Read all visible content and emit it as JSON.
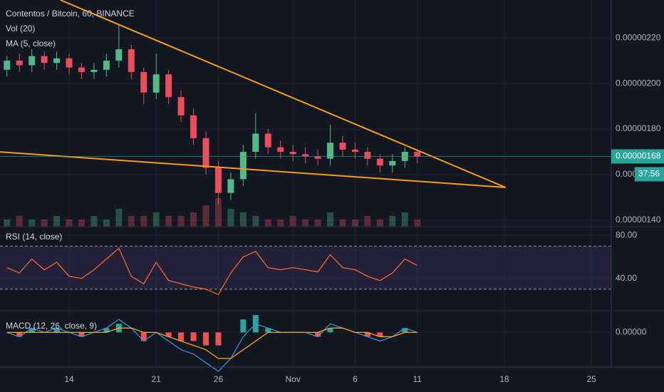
{
  "chart_data": [
    {
      "type": "candlestick",
      "title": "Contentos / Bitcoin, 60, BINANCE",
      "indicators": [
        "Vol (20)",
        "MA (5, close)"
      ],
      "x": [
        9,
        10,
        11,
        12,
        13,
        14,
        15,
        16,
        17,
        18,
        19,
        20,
        21,
        22,
        23,
        24,
        25,
        26,
        27,
        28,
        29,
        30,
        31,
        32,
        33,
        34,
        35,
        36,
        37,
        38,
        39,
        40,
        41,
        42
      ],
      "open": [
        2.06e-06,
        2.1e-06,
        2.08e-06,
        2.12e-06,
        2.09e-06,
        2.11e-06,
        2.07e-06,
        2.05e-06,
        2.06e-06,
        2.1e-06,
        2.15e-06,
        2.05e-06,
        1.96e-06,
        2.04e-06,
        1.94e-06,
        1.86e-06,
        1.76e-06,
        1.63e-06,
        1.52e-06,
        1.58e-06,
        1.7e-06,
        1.78e-06,
        1.72e-06,
        1.7e-06,
        1.69e-06,
        1.68e-06,
        1.67e-06,
        1.74e-06,
        1.71e-06,
        1.7e-06,
        1.67e-06,
        1.64e-06,
        1.66e-06,
        1.7e-06
      ],
      "high": [
        2.12e-06,
        2.13e-06,
        2.15e-06,
        2.14e-06,
        2.14e-06,
        2.13e-06,
        2.09e-06,
        2.09e-06,
        2.13e-06,
        2.26e-06,
        2.17e-06,
        2.07e-06,
        2.13e-06,
        2.06e-06,
        1.97e-06,
        1.89e-06,
        1.79e-06,
        1.66e-06,
        1.61e-06,
        1.73e-06,
        1.87e-06,
        1.8e-06,
        1.75e-06,
        1.73e-06,
        1.72e-06,
        1.71e-06,
        1.82e-06,
        1.77e-06,
        1.74e-06,
        1.72e-06,
        1.69e-06,
        1.69e-06,
        1.72e-06,
        1.71e-06
      ],
      "low": [
        2.03e-06,
        2.05e-06,
        2.05e-06,
        2.06e-06,
        2.06e-06,
        2.04e-06,
        2.02e-06,
        2.02e-06,
        2.03e-06,
        2.07e-06,
        2.02e-06,
        1.91e-06,
        1.93e-06,
        1.91e-06,
        1.83e-06,
        1.73e-06,
        1.6e-06,
        1.47e-06,
        1.49e-06,
        1.55e-06,
        1.67e-06,
        1.69e-06,
        1.67e-06,
        1.66e-06,
        1.65e-06,
        1.64e-06,
        1.64e-06,
        1.68e-06,
        1.67e-06,
        1.64e-06,
        1.61e-06,
        1.61e-06,
        1.63e-06,
        1.65e-06
      ],
      "close": [
        2.1e-06,
        2.08e-06,
        2.12e-06,
        2.09e-06,
        2.11e-06,
        2.07e-06,
        2.05e-06,
        2.06e-06,
        2.1e-06,
        2.15e-06,
        2.05e-06,
        1.96e-06,
        2.04e-06,
        1.94e-06,
        1.86e-06,
        1.76e-06,
        1.63e-06,
        1.52e-06,
        1.58e-06,
        1.7e-06,
        1.78e-06,
        1.72e-06,
        1.7e-06,
        1.69e-06,
        1.68e-06,
        1.67e-06,
        1.74e-06,
        1.71e-06,
        1.7e-06,
        1.67e-06,
        1.64e-06,
        1.66e-06,
        1.7e-06,
        1.68e-06
      ],
      "volume": [
        2,
        3,
        2,
        2,
        3,
        2,
        2,
        3,
        2,
        5,
        3,
        3,
        4,
        3,
        3,
        4,
        6,
        8,
        5,
        4,
        3,
        2,
        2,
        3,
        2,
        2,
        4,
        2,
        2,
        3,
        2,
        3,
        4,
        2
      ],
      "up_color": "#53b987",
      "down_color": "#eb4d5c",
      "xlim": [
        8.44,
        57.6
      ],
      "xticks": [
        14,
        21,
        26,
        {
          "value": 32,
          "label": "Nov"
        },
        {
          "value": 37,
          "label": "6"
        },
        {
          "value": 42,
          "label": "11"
        },
        {
          "value": 49,
          "label": "18"
        },
        {
          "value": 56,
          "label": "25"
        }
      ],
      "ylim": [
        1.372e-06,
        2.366e-06
      ],
      "yticks": [
        {
          "value": 2.2e-06,
          "label": "0.00000220"
        },
        {
          "value": 2e-06,
          "label": "0.00000200"
        },
        {
          "value": 1.8e-06,
          "label": "0.00000180"
        },
        {
          "value": 1.6e-06,
          "label": "0.0000"
        },
        {
          "value": 1.4e-06,
          "label": "0.00000140"
        }
      ],
      "last_price": {
        "value": 1.68e-06,
        "label": "0.00000168"
      },
      "countdown": "37:56",
      "price_color": "#26a69a",
      "trendline_color": "#f59d1b",
      "trendlines": [
        {
          "x": [
            13.3,
            49.1
          ],
          "y": [
            2.366e-06,
            1.544e-06
          ]
        },
        {
          "x": [
            8.44,
            49.1
          ],
          "y": [
            1.7e-06,
            1.544e-06
          ]
        }
      ]
    },
    {
      "type": "line",
      "title": "RSI (14, close)",
      "color": "#f0692e",
      "values": [
        50,
        45,
        58,
        48,
        55,
        42,
        40,
        48,
        58,
        68,
        42,
        35,
        55,
        38,
        35,
        32,
        30,
        25,
        45,
        60,
        65,
        50,
        48,
        50,
        48,
        46,
        62,
        50,
        48,
        42,
        38,
        45,
        58,
        52
      ],
      "ylim": [
        10,
        88
      ],
      "yticks": [
        {
          "value": 80,
          "label": "80.00"
        },
        {
          "value": 40,
          "label": "40.00"
        }
      ],
      "band": [
        30,
        70
      ]
    },
    {
      "type": "line",
      "title": "MACD (12, 26, close, 9)",
      "series": [
        {
          "color": "#3b8fd9",
          "values": [
            0,
            -1e-08,
            1e-08,
            0,
            1e-08,
            0,
            -1e-08,
            0,
            1e-08,
            3e-08,
            1e-08,
            -2e-08,
            0,
            -2e-08,
            -4e-08,
            -5e-08,
            -7e-08,
            -9e-08,
            -6e-08,
            -1e-08,
            2e-08,
            1e-08,
            0,
            0,
            0,
            -1e-08,
            2e-08,
            1e-08,
            0,
            -1e-08,
            -2e-08,
            -1e-08,
            1e-08,
            0
          ]
        },
        {
          "color": "#f5a623",
          "values": [
            0,
            0,
            0,
            0,
            0,
            0,
            0,
            0,
            0,
            1e-08,
            1e-08,
            0,
            0,
            -1e-08,
            -2e-08,
            -3e-08,
            -4e-08,
            -6e-08,
            -6e-08,
            -4e-08,
            -2e-08,
            0,
            0,
            0,
            0,
            0,
            1e-08,
            1e-08,
            0,
            0,
            -1e-08,
            -1e-08,
            0,
            0
          ]
        }
      ],
      "histogram": {
        "up_color": "#26a69a",
        "down_color": "#ef5350",
        "values": [
          0,
          -1e-08,
          1e-08,
          0,
          1e-08,
          0,
          -1e-08,
          0,
          1e-08,
          2e-08,
          0,
          -2e-08,
          0,
          -1e-08,
          -2e-08,
          -2e-08,
          -3e-08,
          -3e-08,
          0,
          3e-08,
          4e-08,
          1e-08,
          0,
          0,
          0,
          -1e-08,
          1e-08,
          0,
          0,
          -1e-08,
          -1e-08,
          0,
          1e-08,
          0
        ]
      },
      "ylim": [
        -8e-08,
        5e-08
      ],
      "yticks": [
        {
          "value": 0,
          "label": "0.00000"
        }
      ]
    }
  ]
}
